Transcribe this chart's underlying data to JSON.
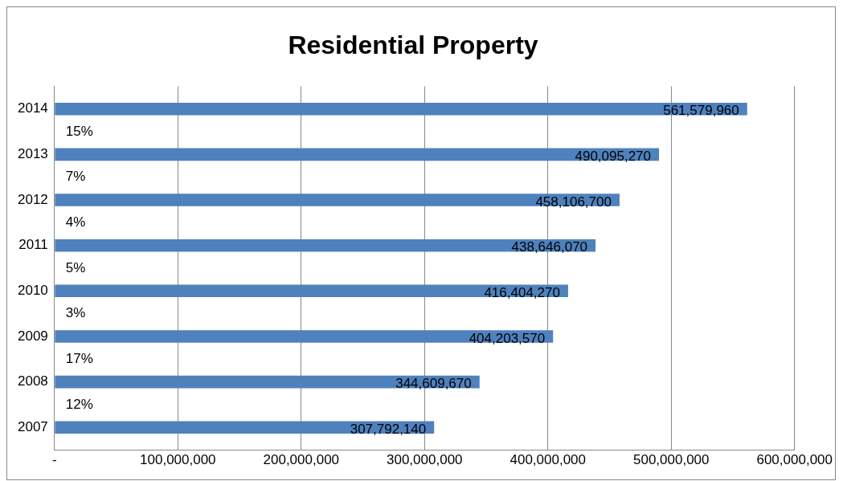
{
  "chart_data": {
    "type": "bar",
    "orientation": "horizontal",
    "title": "Residential Property",
    "categories": [
      "2014",
      "2013",
      "2012",
      "2011",
      "2010",
      "2009",
      "2008",
      "2007"
    ],
    "values": [
      561579960,
      490095270,
      458106700,
      438646070,
      416404270,
      404203570,
      344609670,
      307792140
    ],
    "color": "#4f81bd",
    "xlim": [
      0,
      600000000
    ],
    "xticks": [
      {
        "value": 0,
        "label": "-"
      },
      {
        "value": 100000000,
        "label": "100,000,000"
      },
      {
        "value": 200000000,
        "label": "200,000,000"
      },
      {
        "value": 300000000,
        "label": "300,000,000"
      },
      {
        "value": 400000000,
        "label": "400,000,000"
      },
      {
        "value": 500000000,
        "label": "500,000,000"
      },
      {
        "value": 600000000,
        "label": "600,000,000"
      }
    ],
    "value_labels": [
      "561,579,960",
      "490,095,270",
      "458,106,700",
      "438,646,070",
      "416,404,270",
      "404,203,570",
      "344,609,670",
      "307,792,140"
    ],
    "grid": "x",
    "legend": false,
    "annotations": [
      "15%",
      "7%",
      "4%",
      "5%",
      "3%",
      "17%",
      "12%"
    ]
  }
}
